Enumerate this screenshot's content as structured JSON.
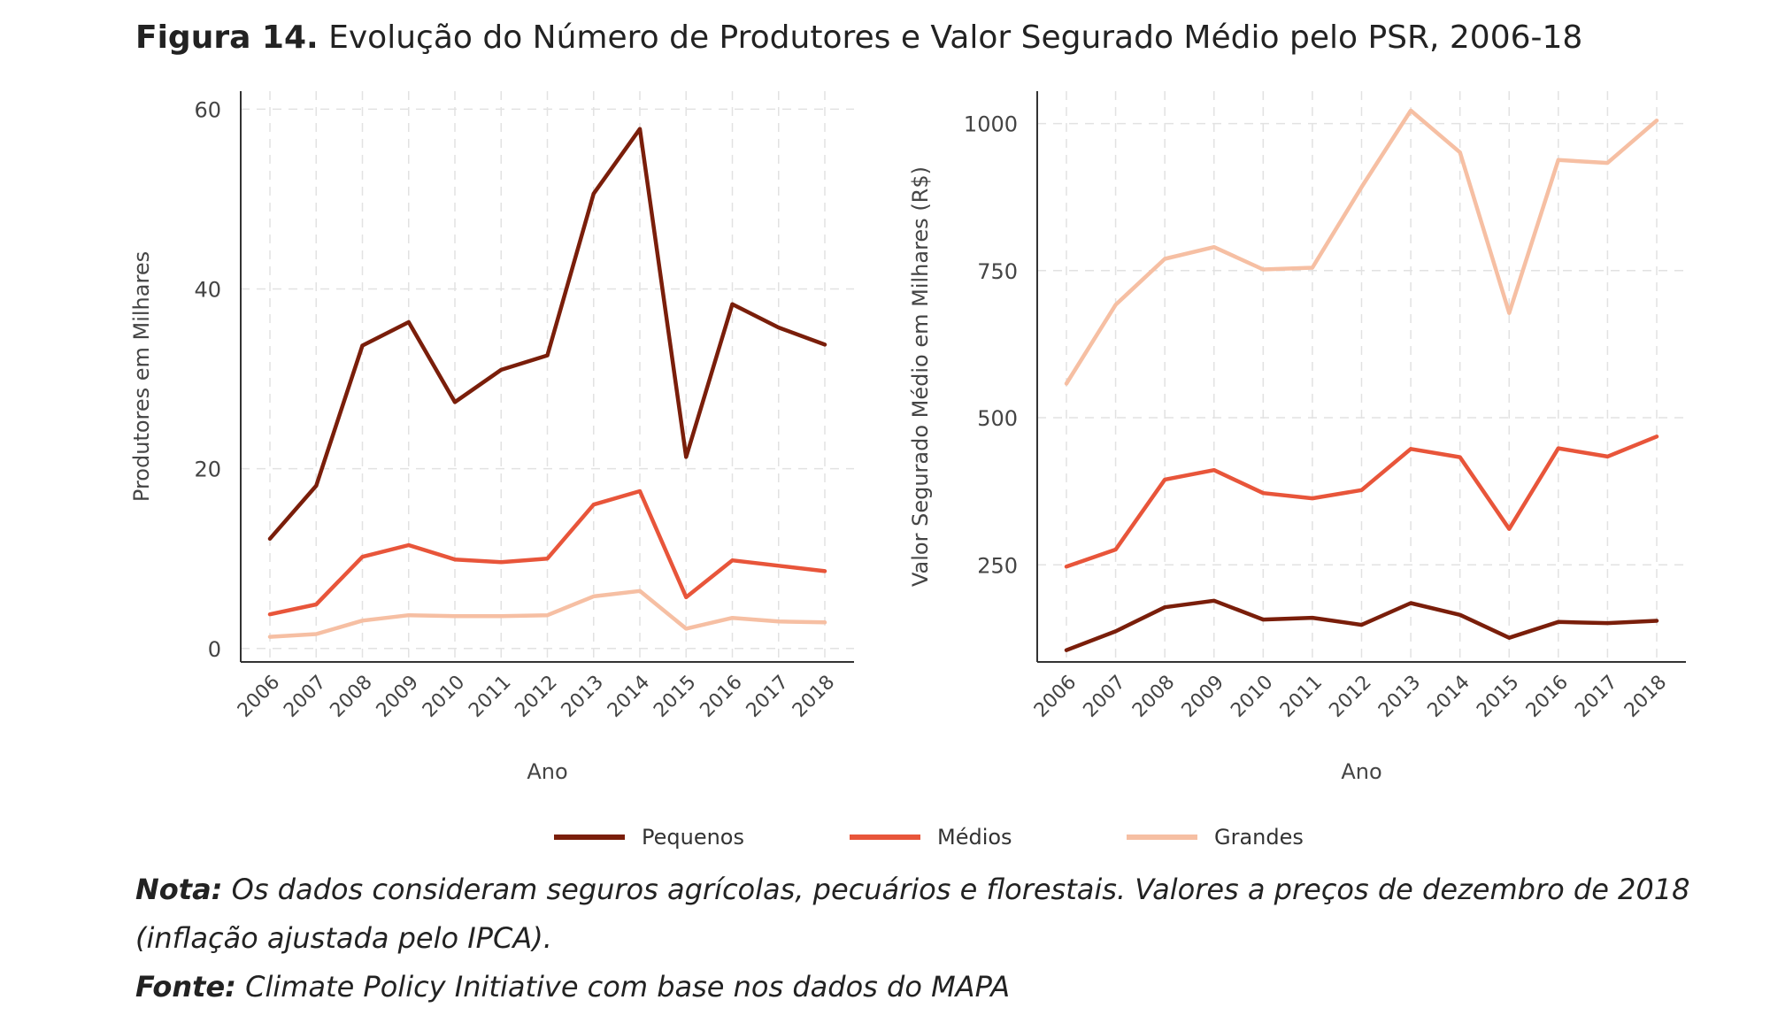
{
  "figure": {
    "title_bold": "Figura 14.",
    "title_rest": " Evolução do Número de Produtores e Valor Segurado Médio pelo PSR, 2006-18"
  },
  "legend": [
    {
      "name": "Pequenos",
      "color": "#7a1e0a"
    },
    {
      "name": "Médios",
      "color": "#e8553a"
    },
    {
      "name": "Grandes",
      "color": "#f6bfa3"
    }
  ],
  "notes": {
    "nota_label": "Nota:",
    "nota_text": " Os dados consideram seguros agrícolas, pecuários e florestais. Valores a preços de dezembro de 2018",
    "nota_text_2": "(inflação ajustada pelo IPCA).",
    "fonte_label": "Fonte:",
    "fonte_text": " Climate Policy Initiative com base nos dados do MAPA"
  },
  "chart_data": [
    {
      "type": "line",
      "xlabel": "Ano",
      "ylabel": "Produtores em Milhares",
      "x": [
        "2006",
        "2007",
        "2008",
        "2009",
        "2010",
        "2011",
        "2012",
        "2013",
        "2014",
        "2015",
        "2016",
        "2017",
        "2018"
      ],
      "yticks": [
        "0",
        "20",
        "40",
        "60"
      ],
      "ylim": [
        -1.5,
        62
      ],
      "grid": true,
      "series": [
        {
          "name": "Pequenos",
          "color": "#7a1e0a",
          "values": [
            12.2,
            18.1,
            33.7,
            36.3,
            27.4,
            31.0,
            32.6,
            50.6,
            57.8,
            21.3,
            38.3,
            35.7,
            33.8
          ]
        },
        {
          "name": "Médios",
          "color": "#e8553a",
          "values": [
            3.8,
            4.9,
            10.2,
            11.5,
            9.9,
            9.6,
            10.0,
            16.0,
            17.5,
            5.7,
            9.8,
            9.2,
            8.6
          ]
        },
        {
          "name": "Grandes",
          "color": "#f6bfa3",
          "values": [
            1.3,
            1.6,
            3.1,
            3.7,
            3.6,
            3.6,
            3.7,
            5.8,
            6.4,
            2.2,
            3.4,
            3.0,
            2.9
          ]
        }
      ]
    },
    {
      "type": "line",
      "xlabel": "Ano",
      "ylabel": "Valor Segurado Médio em Milhares (R$)",
      "x": [
        "2006",
        "2007",
        "2008",
        "2009",
        "2010",
        "2011",
        "2012",
        "2013",
        "2014",
        "2015",
        "2016",
        "2017",
        "2018"
      ],
      "yticks": [
        "250",
        "500",
        "750",
        "1000"
      ],
      "ylim": [
        85,
        1055
      ],
      "grid": true,
      "series": [
        {
          "name": "Pequenos",
          "color": "#7a1e0a",
          "values": [
            105,
            137,
            178,
            189,
            157,
            160,
            148,
            185,
            165,
            126,
            153,
            151,
            155
          ]
        },
        {
          "name": "Médios",
          "color": "#e8553a",
          "values": [
            247,
            276,
            395,
            411,
            372,
            363,
            377,
            447,
            433,
            311,
            448,
            434,
            468
          ]
        },
        {
          "name": "Grandes",
          "color": "#f6bfa3",
          "values": [
            558,
            692,
            770,
            790,
            752,
            755,
            892,
            1022,
            951,
            678,
            938,
            933,
            1005
          ]
        }
      ]
    }
  ]
}
